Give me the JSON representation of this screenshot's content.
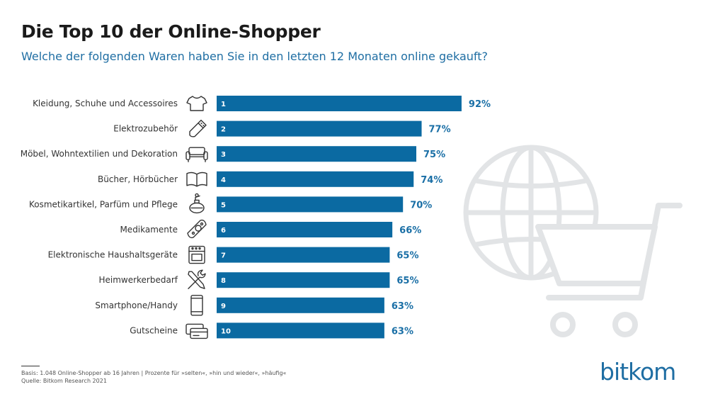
{
  "title": "Die Top 10 der Online-Shopper",
  "subtitle": "Welche der folgenden Waren haben Sie in den letzten 12 Monaten online gekauft?",
  "colors": {
    "bar": "#0b6aa2",
    "value_text": "#1a6fa6",
    "subtitle": "#1f6ea3",
    "watermark": "#e2e4e6"
  },
  "chart_data": {
    "type": "bar",
    "orientation": "horizontal",
    "categories": [
      "Kleidung, Schuhe und Accessoires",
      "Elektrozubehör",
      "Möbel, Wohntextilien und Dekoration",
      "Bücher, Hörbücher",
      "Kosmetikartikel, Parfüm und Pflege",
      "Medikamente",
      "Elektronische Haushaltsgeräte",
      "Heimwerkerbedarf",
      "Smartphone/Handy",
      "Gutscheine"
    ],
    "ranks": [
      "1",
      "2",
      "3",
      "4",
      "5",
      "6",
      "7",
      "8",
      "9",
      "10"
    ],
    "values": [
      92,
      77,
      75,
      74,
      70,
      66,
      65,
      65,
      63,
      63
    ],
    "value_labels": [
      "92%",
      "77%",
      "75%",
      "74%",
      "70%",
      "66%",
      "65%",
      "65%",
      "63%",
      "63%"
    ],
    "icons": [
      "tshirt-icon",
      "usb-stick-icon",
      "sofa-icon",
      "book-icon",
      "perfume-icon",
      "pill-icon",
      "oven-icon",
      "tools-icon",
      "smartphone-icon",
      "voucher-icon"
    ],
    "xlim": [
      0,
      100
    ],
    "grid": false,
    "legend": "none"
  },
  "footnote": {
    "basis": "Basis: 1.048 Online-Shopper ab 16 Jahren | Prozente für »selten«, »hin und wieder«, »häufig«",
    "source": "Quelle: Bitkom Research 2021"
  },
  "logo": {
    "text": "bitkom",
    "icon": "bitkom-logo"
  },
  "watermark_icons": [
    "globe-icon",
    "shopping-cart-icon"
  ]
}
